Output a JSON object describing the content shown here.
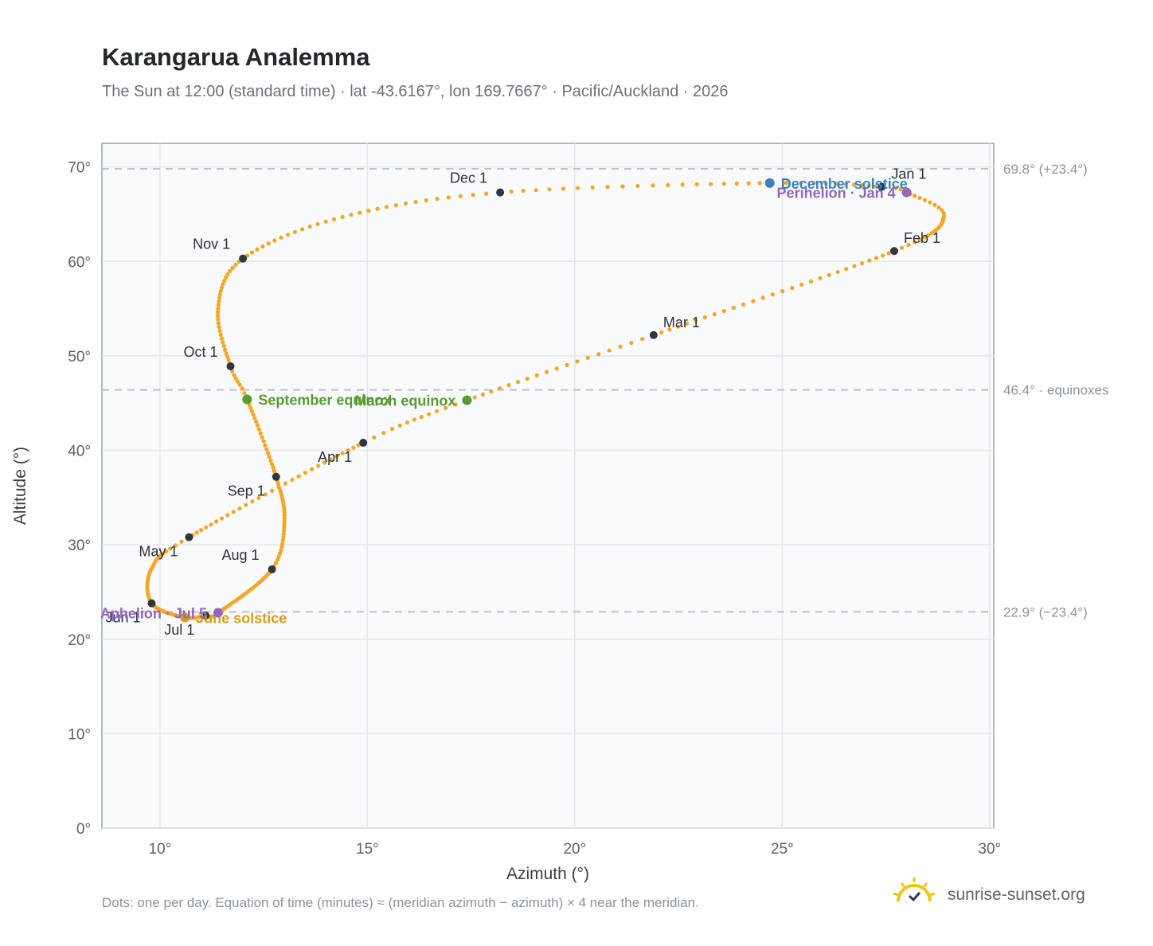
{
  "header": {
    "title": "Karangarua Analemma",
    "subtitle": "The Sun at 12:00 (standard time) · lat -43.6167°, lon 169.7667° · Pacific/Auckland · 2026"
  },
  "footer": {
    "note": "Dots: one per day. Equation of time (minutes) ≈ (meridian azimuth − azimuth) × 4 near the meridian.",
    "brand": "sunrise-sunset.org"
  },
  "colors": {
    "curve": "#f5a623",
    "month_marker": "#30363d",
    "equinox": "#5a9a2f",
    "december_solstice": "#3b82c4",
    "june_solstice": "#d4a017",
    "apsis": "#9467bd",
    "plot_bg": "#f8fafc",
    "grid": "#e4e8ee",
    "reference_line": "#bcc4cd"
  },
  "chart_data": {
    "type": "scatter",
    "xlabel": "Azimuth (°)",
    "ylabel": "Altitude (°)",
    "xlim": [
      8.6,
      30.1
    ],
    "ylim": [
      0,
      72.5
    ],
    "xticks": [
      10,
      15,
      20,
      25,
      30
    ],
    "yticks": [
      0,
      10,
      20,
      30,
      40,
      50,
      60,
      70
    ],
    "tick_suffix": "°",
    "grid": true,
    "reference_lines": [
      {
        "y": 69.8,
        "label": "69.8° (+23.4°)"
      },
      {
        "y": 46.4,
        "label": "46.4° · equinoxes"
      },
      {
        "y": 22.9,
        "label": "22.9° (−23.4°)"
      }
    ],
    "series": [
      {
        "points_per": "day",
        "anchors": [
          {
            "doy": 1,
            "az": 27.4,
            "alt": 67.9
          },
          {
            "doy": 4,
            "az": 28.0,
            "alt": 67.3
          },
          {
            "doy": 14,
            "az": 28.9,
            "alt": 64.8
          },
          {
            "doy": 32,
            "az": 27.7,
            "alt": 61.1
          },
          {
            "doy": 60,
            "az": 21.9,
            "alt": 52.2
          },
          {
            "doy": 79,
            "az": 17.4,
            "alt": 45.3
          },
          {
            "doy": 91,
            "az": 14.9,
            "alt": 40.8
          },
          {
            "doy": 121,
            "az": 10.7,
            "alt": 30.8
          },
          {
            "doy": 134,
            "az": 9.8,
            "alt": 27.5
          },
          {
            "doy": 152,
            "az": 9.8,
            "alt": 23.8
          },
          {
            "doy": 172,
            "az": 10.6,
            "alt": 22.3
          },
          {
            "doy": 182,
            "az": 11.1,
            "alt": 22.5
          },
          {
            "doy": 186,
            "az": 11.4,
            "alt": 22.8
          },
          {
            "doy": 213,
            "az": 12.7,
            "alt": 27.4
          },
          {
            "doy": 228,
            "az": 13.0,
            "alt": 32.5
          },
          {
            "doy": 244,
            "az": 12.8,
            "alt": 37.2
          },
          {
            "doy": 266,
            "az": 12.1,
            "alt": 45.4
          },
          {
            "doy": 274,
            "az": 11.7,
            "alt": 48.9
          },
          {
            "doy": 290,
            "az": 11.4,
            "alt": 55.0
          },
          {
            "doy": 305,
            "az": 12.0,
            "alt": 60.3
          },
          {
            "doy": 320,
            "az": 14.4,
            "alt": 64.7
          },
          {
            "doy": 335,
            "az": 18.2,
            "alt": 67.3
          },
          {
            "doy": 355,
            "az": 24.7,
            "alt": 68.3
          },
          {
            "doy": 366,
            "az": 27.4,
            "alt": 67.9
          }
        ]
      }
    ],
    "month_markers": [
      {
        "label": "Jan 1",
        "az": 27.4,
        "alt": 67.9,
        "label_pos": "above-right"
      },
      {
        "label": "Feb 1",
        "az": 27.7,
        "alt": 61.1,
        "label_pos": "above-right"
      },
      {
        "label": "Mar 1",
        "az": 21.9,
        "alt": 52.2,
        "label_pos": "above-right"
      },
      {
        "label": "Apr 1",
        "az": 14.9,
        "alt": 40.8,
        "label_pos": "below-left"
      },
      {
        "label": "May 1",
        "az": 10.7,
        "alt": 30.8,
        "label_pos": "below-left"
      },
      {
        "label": "Jun 1",
        "az": 9.8,
        "alt": 23.8,
        "label_pos": "below-left"
      },
      {
        "label": "Jul 1",
        "az": 11.1,
        "alt": 22.5,
        "label_pos": "below-left"
      },
      {
        "label": "Aug 1",
        "az": 12.7,
        "alt": 27.4,
        "label_pos": "above-left"
      },
      {
        "label": "Sep 1",
        "az": 12.8,
        "alt": 37.2,
        "label_pos": "below-left"
      },
      {
        "label": "Oct 1",
        "az": 11.7,
        "alt": 48.9,
        "label_pos": "above-left"
      },
      {
        "label": "Nov 1",
        "az": 12.0,
        "alt": 60.3,
        "label_pos": "above-left"
      },
      {
        "label": "Dec 1",
        "az": 18.2,
        "alt": 67.3,
        "label_pos": "above-left"
      }
    ],
    "events": [
      {
        "label": "December solstice",
        "az": 24.7,
        "alt": 68.3,
        "kind": "december_solstice",
        "label_pos": "right"
      },
      {
        "label": "Perihelion · Jan 4",
        "az": 28.0,
        "alt": 67.3,
        "kind": "apsis",
        "label_pos": "left"
      },
      {
        "label": "March equinox",
        "az": 17.4,
        "alt": 45.3,
        "kind": "equinox",
        "label_pos": "left"
      },
      {
        "label": "September equinox",
        "az": 12.1,
        "alt": 45.4,
        "kind": "equinox",
        "label_pos": "right"
      },
      {
        "label": "June solstice",
        "az": 10.6,
        "alt": 22.3,
        "kind": "june_solstice",
        "label_pos": "right"
      },
      {
        "label": "Aphelion · Jul 5",
        "az": 11.4,
        "alt": 22.8,
        "kind": "apsis",
        "label_pos": "left"
      }
    ]
  }
}
